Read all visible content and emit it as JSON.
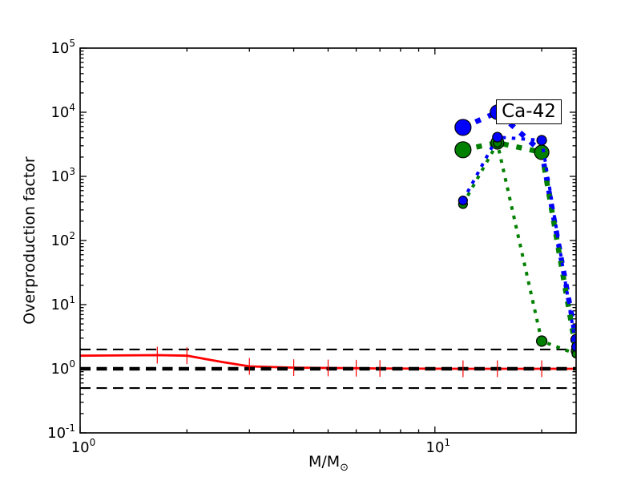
{
  "axes": {
    "ylabel": "Overproduction factor",
    "xlabel_main": "M/M",
    "xlabel_sub": "⊙",
    "tick_label_base": "10",
    "x_major_exponents": [
      0,
      1
    ],
    "y_major_exponents": [
      -1,
      0,
      1,
      2,
      3,
      4,
      5
    ]
  },
  "chart_data": {
    "type": "line",
    "title": "",
    "xlabel": "M/M_sun",
    "ylabel": "Overproduction factor",
    "xscale": "log",
    "yscale": "log",
    "xlim": [
      1,
      25
    ],
    "ylim": [
      0.1,
      100000
    ],
    "grid": false,
    "legend": null,
    "annotation": "Ca-42",
    "reference_lines": [
      {
        "y": 2.0,
        "color": "#000000",
        "style": "dashed",
        "width": 2.2
      },
      {
        "y": 1.0,
        "color": "#000000",
        "style": "dashed",
        "width": 4.5
      },
      {
        "y": 0.5,
        "color": "#000000",
        "style": "dashed",
        "width": 2.2
      }
    ],
    "series": [
      {
        "name": "solid-red-line",
        "color": "#ff0000",
        "style": "solid",
        "width": 2.8,
        "marker": "none",
        "x": [
          1,
          1.65,
          2,
          2.5,
          3,
          4,
          5,
          6,
          7,
          12,
          15,
          20,
          25
        ],
        "y": [
          1.6,
          1.63,
          1.6,
          1.28,
          1.09,
          1.04,
          1.03,
          1.02,
          1.01,
          1.0,
          1.0,
          1.0,
          1.0
        ],
        "error_bars": {
          "x": [
            1.65,
            2,
            3,
            4,
            5,
            6,
            7,
            12,
            15,
            20,
            25
          ],
          "y": [
            1.63,
            1.6,
            1.09,
            1.04,
            1.03,
            1.02,
            1.01,
            1.0,
            1.0,
            1.0,
            1.0
          ],
          "factor": 1.35
        }
      },
      {
        "name": "blue-thick-dashed",
        "color": "#0000ff",
        "style": "dashed",
        "width": 6.5,
        "marker": "circle",
        "x": [
          12,
          15,
          20,
          25
        ],
        "y": [
          5800,
          10000,
          2400,
          2.85
        ],
        "marker_radii": [
          10,
          9,
          6,
          6.5
        ]
      },
      {
        "name": "green-thick-dashed",
        "color": "#008000",
        "style": "dashed",
        "width": 6.5,
        "marker": "circle",
        "x": [
          12,
          15,
          20,
          25
        ],
        "y": [
          2600,
          3350,
          2370,
          1.9
        ],
        "marker_radii": [
          10,
          8,
          9,
          6
        ]
      },
      {
        "name": "green-thin-dashed",
        "color": "#008000",
        "style": "dashed",
        "width": 4,
        "marker": "circle",
        "x": [
          12,
          15,
          20,
          25
        ],
        "y": [
          370,
          3300,
          2.7,
          1.7
        ],
        "marker_radii": [
          5.5,
          5,
          6.5,
          5
        ]
      },
      {
        "name": "blue-thin-dashed",
        "color": "#0000ff",
        "style": "dashed",
        "width": 4,
        "marker": "circle",
        "x": [
          12,
          15,
          20,
          25
        ],
        "y": [
          420,
          4090,
          3650,
          2.2
        ],
        "marker_radii": [
          5.5,
          6,
          6,
          5.5
        ]
      }
    ]
  }
}
